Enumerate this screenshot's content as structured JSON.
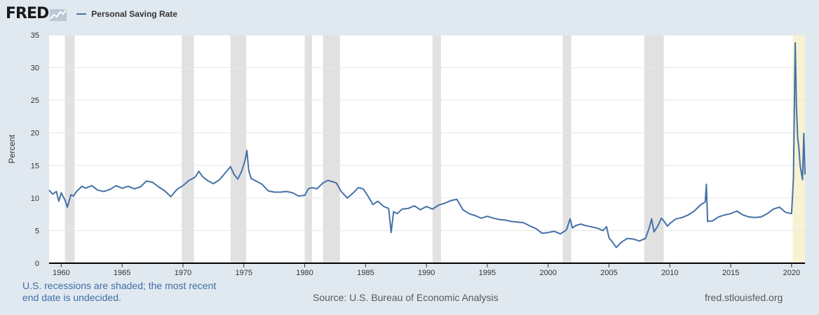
{
  "header": {
    "logo_text": "FRED",
    "series_label": "Personal Saving Rate"
  },
  "colors": {
    "background": "#e1e9f0",
    "plot_background": "#ffffff",
    "line": "#4572a7",
    "recession_shade": "#e1e1e1",
    "undecided_shade": "#f7f2d2",
    "footer_note": "#3e6ea6"
  },
  "footer": {
    "note": "U.S. recessions are shaded; the most recent end date is undecided.",
    "source": "Source: U.S. Bureau of Economic Analysis",
    "url": "fred.stlouisfed.org"
  },
  "chart_data": {
    "type": "line",
    "title": "",
    "xlabel": "",
    "ylabel": "Percent",
    "xlim": [
      1959.0,
      2021.1
    ],
    "ylim": [
      0,
      35
    ],
    "grid": true,
    "legend_position": "top-left",
    "x_ticks": [
      1960,
      1965,
      1970,
      1975,
      1980,
      1985,
      1990,
      1995,
      2000,
      2005,
      2010,
      2015,
      2020
    ],
    "y_ticks": [
      0,
      5,
      10,
      15,
      20,
      25,
      30,
      35
    ],
    "recessions": [
      [
        1960.3,
        1961.1
      ],
      [
        1969.9,
        1970.9
      ],
      [
        1973.9,
        1975.2
      ],
      [
        1980.0,
        1980.6
      ],
      [
        1981.5,
        1982.9
      ],
      [
        1990.5,
        1991.2
      ],
      [
        2001.2,
        2001.9
      ],
      [
        2007.9,
        2009.5
      ]
    ],
    "undecided_recession": [
      2020.1,
      2021.1
    ],
    "series": [
      {
        "name": "Personal Saving Rate",
        "points": [
          [
            1959.0,
            11.2
          ],
          [
            1959.3,
            10.6
          ],
          [
            1959.6,
            11.0
          ],
          [
            1959.8,
            9.5
          ],
          [
            1960.0,
            10.8
          ],
          [
            1960.3,
            9.7
          ],
          [
            1960.5,
            8.6
          ],
          [
            1960.8,
            10.5
          ],
          [
            1961.0,
            10.3
          ],
          [
            1961.3,
            11.1
          ],
          [
            1961.7,
            11.8
          ],
          [
            1962.0,
            11.5
          ],
          [
            1962.5,
            11.9
          ],
          [
            1963.0,
            11.2
          ],
          [
            1963.5,
            11.0
          ],
          [
            1964.0,
            11.3
          ],
          [
            1964.5,
            11.9
          ],
          [
            1965.0,
            11.5
          ],
          [
            1965.5,
            11.8
          ],
          [
            1966.0,
            11.4
          ],
          [
            1966.5,
            11.7
          ],
          [
            1967.0,
            12.6
          ],
          [
            1967.5,
            12.4
          ],
          [
            1968.0,
            11.7
          ],
          [
            1968.5,
            11.1
          ],
          [
            1969.0,
            10.2
          ],
          [
            1969.5,
            11.3
          ],
          [
            1970.0,
            11.9
          ],
          [
            1970.5,
            12.7
          ],
          [
            1971.0,
            13.2
          ],
          [
            1971.3,
            14.1
          ],
          [
            1971.6,
            13.3
          ],
          [
            1972.0,
            12.7
          ],
          [
            1972.5,
            12.2
          ],
          [
            1973.0,
            12.8
          ],
          [
            1973.5,
            13.9
          ],
          [
            1973.9,
            14.8
          ],
          [
            1974.2,
            13.6
          ],
          [
            1974.5,
            12.9
          ],
          [
            1974.8,
            14.0
          ],
          [
            1975.1,
            15.8
          ],
          [
            1975.25,
            17.3
          ],
          [
            1975.4,
            14.2
          ],
          [
            1975.6,
            13.0
          ],
          [
            1976.0,
            12.6
          ],
          [
            1976.5,
            12.1
          ],
          [
            1977.0,
            11.1
          ],
          [
            1977.5,
            10.9
          ],
          [
            1978.0,
            10.9
          ],
          [
            1978.5,
            11.0
          ],
          [
            1979.0,
            10.8
          ],
          [
            1979.5,
            10.3
          ],
          [
            1980.0,
            10.4
          ],
          [
            1980.3,
            11.4
          ],
          [
            1980.6,
            11.6
          ],
          [
            1981.0,
            11.4
          ],
          [
            1981.5,
            12.3
          ],
          [
            1981.9,
            12.7
          ],
          [
            1982.3,
            12.5
          ],
          [
            1982.6,
            12.3
          ],
          [
            1983.0,
            11.0
          ],
          [
            1983.5,
            10.0
          ],
          [
            1984.0,
            10.8
          ],
          [
            1984.4,
            11.6
          ],
          [
            1984.8,
            11.4
          ],
          [
            1985.2,
            10.3
          ],
          [
            1985.6,
            9.0
          ],
          [
            1986.0,
            9.5
          ],
          [
            1986.5,
            8.7
          ],
          [
            1986.9,
            8.4
          ],
          [
            1987.1,
            4.7
          ],
          [
            1987.3,
            7.9
          ],
          [
            1987.6,
            7.6
          ],
          [
            1988.0,
            8.3
          ],
          [
            1988.5,
            8.4
          ],
          [
            1989.0,
            8.8
          ],
          [
            1989.5,
            8.2
          ],
          [
            1990.0,
            8.7
          ],
          [
            1990.5,
            8.3
          ],
          [
            1991.0,
            8.9
          ],
          [
            1991.5,
            9.2
          ],
          [
            1992.0,
            9.6
          ],
          [
            1992.5,
            9.8
          ],
          [
            1993.0,
            8.2
          ],
          [
            1993.5,
            7.6
          ],
          [
            1994.0,
            7.3
          ],
          [
            1994.5,
            6.9
          ],
          [
            1995.0,
            7.2
          ],
          [
            1995.5,
            6.9
          ],
          [
            1996.0,
            6.7
          ],
          [
            1996.5,
            6.6
          ],
          [
            1997.0,
            6.4
          ],
          [
            1997.5,
            6.3
          ],
          [
            1998.0,
            6.2
          ],
          [
            1998.5,
            5.7
          ],
          [
            1999.0,
            5.3
          ],
          [
            1999.5,
            4.6
          ],
          [
            2000.0,
            4.7
          ],
          [
            2000.5,
            4.9
          ],
          [
            2001.0,
            4.5
          ],
          [
            2001.5,
            5.1
          ],
          [
            2001.8,
            6.8
          ],
          [
            2002.0,
            5.4
          ],
          [
            2002.3,
            5.8
          ],
          [
            2002.7,
            6.0
          ],
          [
            2003.0,
            5.8
          ],
          [
            2003.5,
            5.6
          ],
          [
            2004.0,
            5.4
          ],
          [
            2004.5,
            5.0
          ],
          [
            2004.8,
            5.6
          ],
          [
            2005.0,
            3.9
          ],
          [
            2005.3,
            3.2
          ],
          [
            2005.6,
            2.4
          ],
          [
            2006.0,
            3.2
          ],
          [
            2006.5,
            3.8
          ],
          [
            2007.0,
            3.7
          ],
          [
            2007.5,
            3.4
          ],
          [
            2008.0,
            3.8
          ],
          [
            2008.3,
            5.4
          ],
          [
            2008.5,
            6.8
          ],
          [
            2008.7,
            4.8
          ],
          [
            2009.0,
            5.7
          ],
          [
            2009.3,
            6.9
          ],
          [
            2009.5,
            6.5
          ],
          [
            2009.8,
            5.7
          ],
          [
            2010.0,
            6.1
          ],
          [
            2010.5,
            6.8
          ],
          [
            2011.0,
            7.0
          ],
          [
            2011.5,
            7.4
          ],
          [
            2012.0,
            8.0
          ],
          [
            2012.5,
            8.9
          ],
          [
            2012.9,
            9.4
          ],
          [
            2013.0,
            12.1
          ],
          [
            2013.1,
            6.4
          ],
          [
            2013.5,
            6.5
          ],
          [
            2014.0,
            7.1
          ],
          [
            2014.5,
            7.4
          ],
          [
            2015.0,
            7.6
          ],
          [
            2015.5,
            8.0
          ],
          [
            2016.0,
            7.4
          ],
          [
            2016.5,
            7.1
          ],
          [
            2017.0,
            7.0
          ],
          [
            2017.5,
            7.1
          ],
          [
            2018.0,
            7.6
          ],
          [
            2018.5,
            8.3
          ],
          [
            2019.0,
            8.6
          ],
          [
            2019.5,
            7.8
          ],
          [
            2020.0,
            7.6
          ],
          [
            2020.15,
            12.9
          ],
          [
            2020.3,
            33.8
          ],
          [
            2020.4,
            24.0
          ],
          [
            2020.5,
            19.2
          ],
          [
            2020.6,
            17.7
          ],
          [
            2020.7,
            15.0
          ],
          [
            2020.8,
            13.9
          ],
          [
            2020.9,
            12.8
          ],
          [
            2021.0,
            19.9
          ],
          [
            2021.1,
            13.6
          ]
        ]
      }
    ]
  }
}
